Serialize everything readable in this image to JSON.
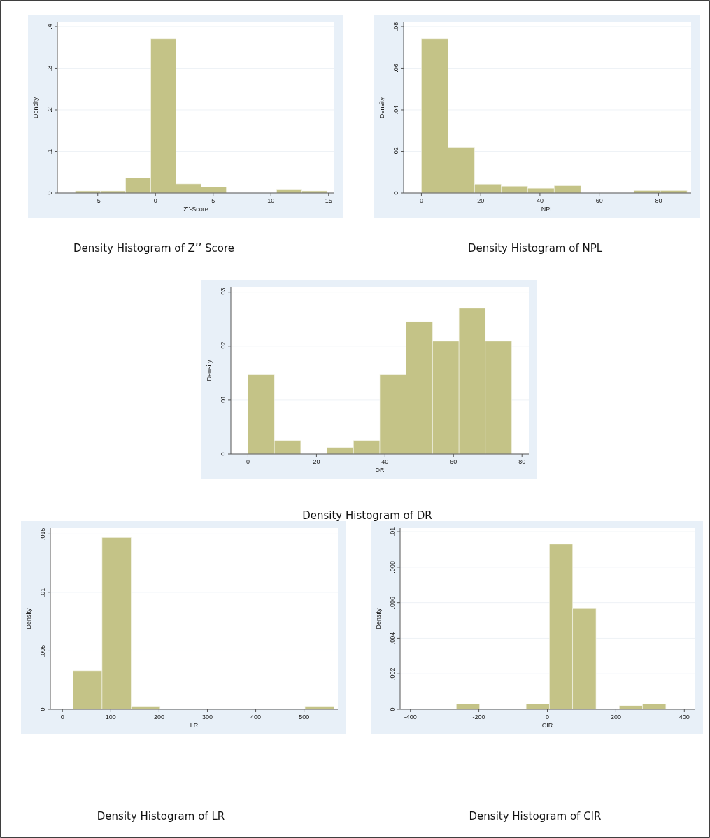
{
  "chart_data": [
    {
      "type": "histogram",
      "title": "Density Histogram of Z’’ Score",
      "xlabel": "Z''-Score",
      "ylabel": "Density",
      "color": "#c4c387",
      "grid": "y",
      "bins": [
        -6.94,
        -4.76,
        -2.58,
        -0.4,
        1.78,
        3.96,
        6.14,
        8.32,
        10.5,
        12.68,
        14.86
      ],
      "values": [
        0.005,
        0.005,
        0.036,
        0.37,
        0.022,
        0.014,
        0,
        0,
        0.009,
        0.005
      ],
      "xlim": [
        -8.5,
        15.5
      ],
      "ylim": [
        0,
        0.41
      ],
      "xticks": [
        -5,
        0,
        5,
        10,
        15
      ],
      "yticks": [
        {
          "value": 0,
          "label": "0"
        },
        {
          "value": 0.1,
          "label": ".1"
        },
        {
          "value": 0.2,
          "label": ".2"
        },
        {
          "value": 0.3,
          "label": ".3"
        },
        {
          "value": 0.4,
          "label": ".4"
        }
      ]
    },
    {
      "type": "histogram",
      "title": "Density Histogram of NPL",
      "xlabel": "NPL",
      "ylabel": "Density",
      "color": "#c4c387",
      "grid": "y",
      "bins": [
        0,
        8.96,
        17.92,
        26.88,
        35.84,
        44.8,
        53.76,
        62.72,
        71.68,
        80.64,
        89.6
      ],
      "values": [
        0.074,
        0.022,
        0.0043,
        0.0033,
        0.0023,
        0.0035,
        0,
        0,
        0.0012,
        0.0012
      ],
      "xlim": [
        -6,
        91
      ],
      "ylim": [
        0,
        0.082
      ],
      "xticks": [
        0,
        20,
        40,
        60,
        80
      ],
      "yticks": [
        {
          "value": 0,
          "label": "0"
        },
        {
          "value": 0.02,
          "label": ".02"
        },
        {
          "value": 0.04,
          "label": ".04"
        },
        {
          "value": 0.06,
          "label": ".06"
        },
        {
          "value": 0.08,
          "label": ".08"
        }
      ]
    },
    {
      "type": "histogram",
      "title": "Density Histogram of DR",
      "xlabel": "DR",
      "ylabel": "Density",
      "color": "#c4c387",
      "grid": "y",
      "bins": [
        0,
        7.7,
        15.4,
        23.1,
        30.8,
        38.5,
        46.2,
        53.9,
        61.6,
        69.3,
        77
      ],
      "values": [
        0.0147,
        0.0025,
        0,
        0.0012,
        0.0025,
        0.0147,
        0.0245,
        0.0209,
        0.027,
        0.0209
      ],
      "xlim": [
        -5,
        82
      ],
      "ylim": [
        0,
        0.031
      ],
      "xticks": [
        0,
        20,
        40,
        60,
        80
      ],
      "yticks": [
        {
          "value": 0,
          "label": "0"
        },
        {
          "value": 0.01,
          "label": ".01"
        },
        {
          "value": 0.02,
          "label": ".02"
        },
        {
          "value": 0.03,
          "label": ".03"
        }
      ]
    },
    {
      "type": "histogram",
      "title": "Density Histogram of LR",
      "xlabel": "LR",
      "ylabel": "Density",
      "color": "#c4c387",
      "grid": "y",
      "bins": [
        22,
        82,
        142,
        202,
        262,
        322,
        382,
        442,
        502,
        562
      ],
      "values": [
        0.0033,
        0.0147,
        0.0002,
        0,
        0,
        0,
        0,
        0,
        0.0002
      ],
      "xlim": [
        -25,
        570
      ],
      "ylim": [
        0,
        0.0155
      ],
      "xticks": [
        0,
        100,
        200,
        300,
        400,
        500
      ],
      "yticks": [
        {
          "value": 0,
          "label": "0"
        },
        {
          "value": 0.005,
          "label": ".005"
        },
        {
          "value": 0.01,
          "label": ".01"
        },
        {
          "value": 0.015,
          "label": ".015"
        }
      ]
    },
    {
      "type": "histogram",
      "title": "Density Histogram of CIR",
      "xlabel": "CIR",
      "ylabel": "Density",
      "color": "#c4c387",
      "grid": "y",
      "bins": [
        -266,
        -198,
        -130,
        -62,
        6,
        74,
        142,
        210,
        278,
        346
      ],
      "values": [
        0.0003,
        0,
        0,
        0.0003,
        0.0093,
        0.0057,
        0,
        0.0002,
        0.0003
      ],
      "xlim": [
        -430,
        430
      ],
      "ylim": [
        0,
        0.0102
      ],
      "xticks": [
        -400,
        -200,
        0,
        200,
        400
      ],
      "yticks": [
        {
          "value": 0,
          "label": "0"
        },
        {
          "value": 0.002,
          "label": ".002"
        },
        {
          "value": 0.004,
          "label": ".004"
        },
        {
          "value": 0.006,
          "label": ".006"
        },
        {
          "value": 0.008,
          "label": ".008"
        },
        {
          "value": 0.01,
          "label": ".01"
        }
      ]
    }
  ]
}
